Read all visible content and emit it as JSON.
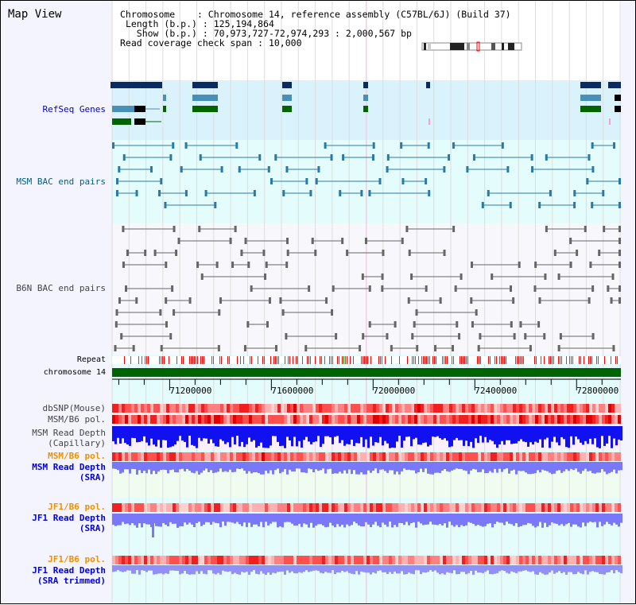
{
  "title": "Map View",
  "header": {
    "chromosome_label": "Chromosome    ",
    "chromosome_value": "Chromosome 14, reference assembly (C57BL/6J) (Build 37)",
    "length_label": "Length (b.p.)",
    "length_value": "125,194,864",
    "show_label": "  Show (b.p.)",
    "show_value": "70,973,727-72,974,293 : 2,000,567 bp",
    "span_label": "Read coverage check span",
    "span_value": "10,000"
  },
  "tracks": {
    "refseq": "RefSeq Genes",
    "msm_bac": "MSM BAC end pairs",
    "b6n_bac": "B6N BAC end pairs",
    "repeat": "Repeat",
    "chromosome": "chromosome 14",
    "dbsnp": "dbSNP(Mouse)",
    "msm_pol": "MSM/B6 pol.",
    "msm_depth_cap_1": "MSM Read Depth",
    "msm_depth_cap_2": "(Capillary)",
    "msm_pol2": "MSM/B6 pol.",
    "msm_sra_1": "MSM Read Depth",
    "msm_sra_2": "(SRA)",
    "jf1_pol": "JF1/B6 pol.",
    "jf1_sra_1": "JF1 Read Depth",
    "jf1_sra_2": "(SRA)",
    "jf1_pol2": "JF1/B6 pol.",
    "jf1_trim_1": "JF1 Read Depth",
    "jf1_trim_2": "(SRA trimmed)"
  },
  "axis": {
    "start": 70973727,
    "end": 72974293,
    "ticks": [
      "71200000",
      "71600000",
      "72000000",
      "72400000",
      "72800000"
    ]
  },
  "colors": {
    "gene_dark": "#0a2a60",
    "gene_mid": "#4890b8",
    "gene_green": "#006400",
    "chrom": "#006400",
    "depth": "#1010f0",
    "sra": "#7878f8"
  }
}
